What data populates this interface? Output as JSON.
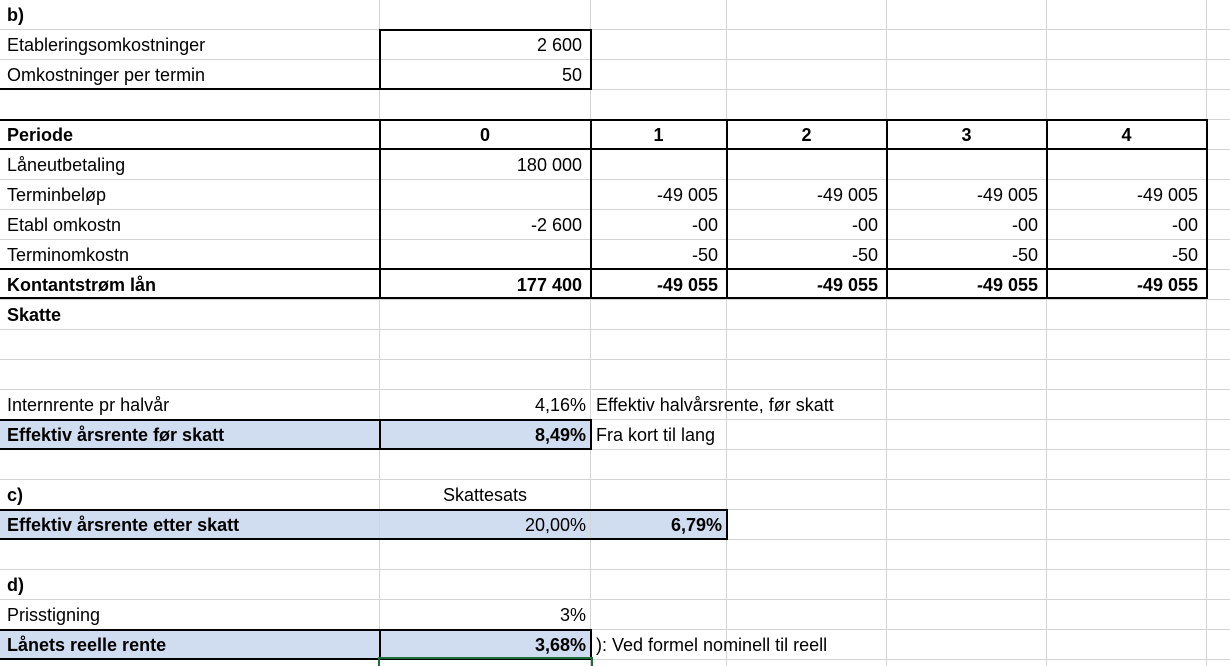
{
  "section_b": {
    "label": "b)",
    "etabl_label": "Etableringsomkostninger",
    "etabl_value": "2 600",
    "term_omk_label": "Omkostninger per termin",
    "term_omk_value": "50"
  },
  "table": {
    "header": {
      "label": "Periode",
      "periods": [
        "0",
        "1",
        "2",
        "3",
        "4"
      ]
    },
    "rows": [
      {
        "label": "Låneutbetaling",
        "values": [
          "180 000",
          "",
          "",
          "",
          ""
        ]
      },
      {
        "label": "Terminbeløp",
        "values": [
          "",
          "-49 005",
          "-49 005",
          "-49 005",
          "-49 005"
        ]
      },
      {
        "label": "Etabl omkostn",
        "values": [
          "-2 600",
          "-00",
          "-00",
          "-00",
          "-00"
        ]
      },
      {
        "label": "Terminomkostn",
        "values": [
          "",
          "-50",
          "-50",
          "-50",
          "-50"
        ]
      },
      {
        "label": "Kontantstrøm lån",
        "values": [
          "177 400",
          "-49 055",
          "-49 055",
          "-49 055",
          "-49 055"
        ]
      }
    ],
    "skatte_label": "Skatte"
  },
  "internrente": {
    "label": "Internrente pr halvår",
    "value": "4,16%",
    "note": "Effektiv halvårsrente, før skatt"
  },
  "effektiv_for_skatt": {
    "label": "Effektiv årsrente før skatt",
    "value": "8,49%",
    "note": "Fra kort til lang"
  },
  "section_c": {
    "label": "c)",
    "skattesats_header": "Skattesats",
    "row_label": "Effektiv årsrente etter skatt",
    "skattesats_value": "20,00%",
    "value": "6,79%"
  },
  "section_d": {
    "label": "d)",
    "prisstigning_label": "Prisstigning",
    "prisstigning_value": "3%",
    "reell_label": "Lånets reelle rente",
    "reell_value": "3,68%",
    "reell_note": "): Ved formel nominell til reell"
  },
  "colors": {
    "highlight_fill": "#d0dcef",
    "gridline": "#d4d4d4",
    "selection_border": "#1e6e3c"
  }
}
